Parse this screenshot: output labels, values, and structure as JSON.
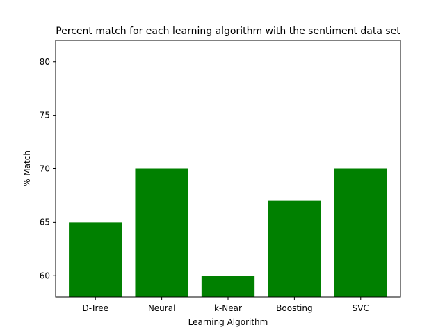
{
  "chart_data": {
    "type": "bar",
    "title": "Percent match for each learning algorithm with the sentiment data set",
    "xlabel": "Learning Algorithm",
    "ylabel": "% Match",
    "categories": [
      "D-Tree",
      "Neural",
      "k-Near",
      "Boosting",
      "SVC"
    ],
    "values": [
      65,
      70,
      60,
      67,
      70
    ],
    "ylim": [
      58,
      82
    ],
    "yticks": [
      60,
      65,
      70,
      75,
      80
    ],
    "bar_color": "#008000",
    "grid": false,
    "legend": "none"
  }
}
